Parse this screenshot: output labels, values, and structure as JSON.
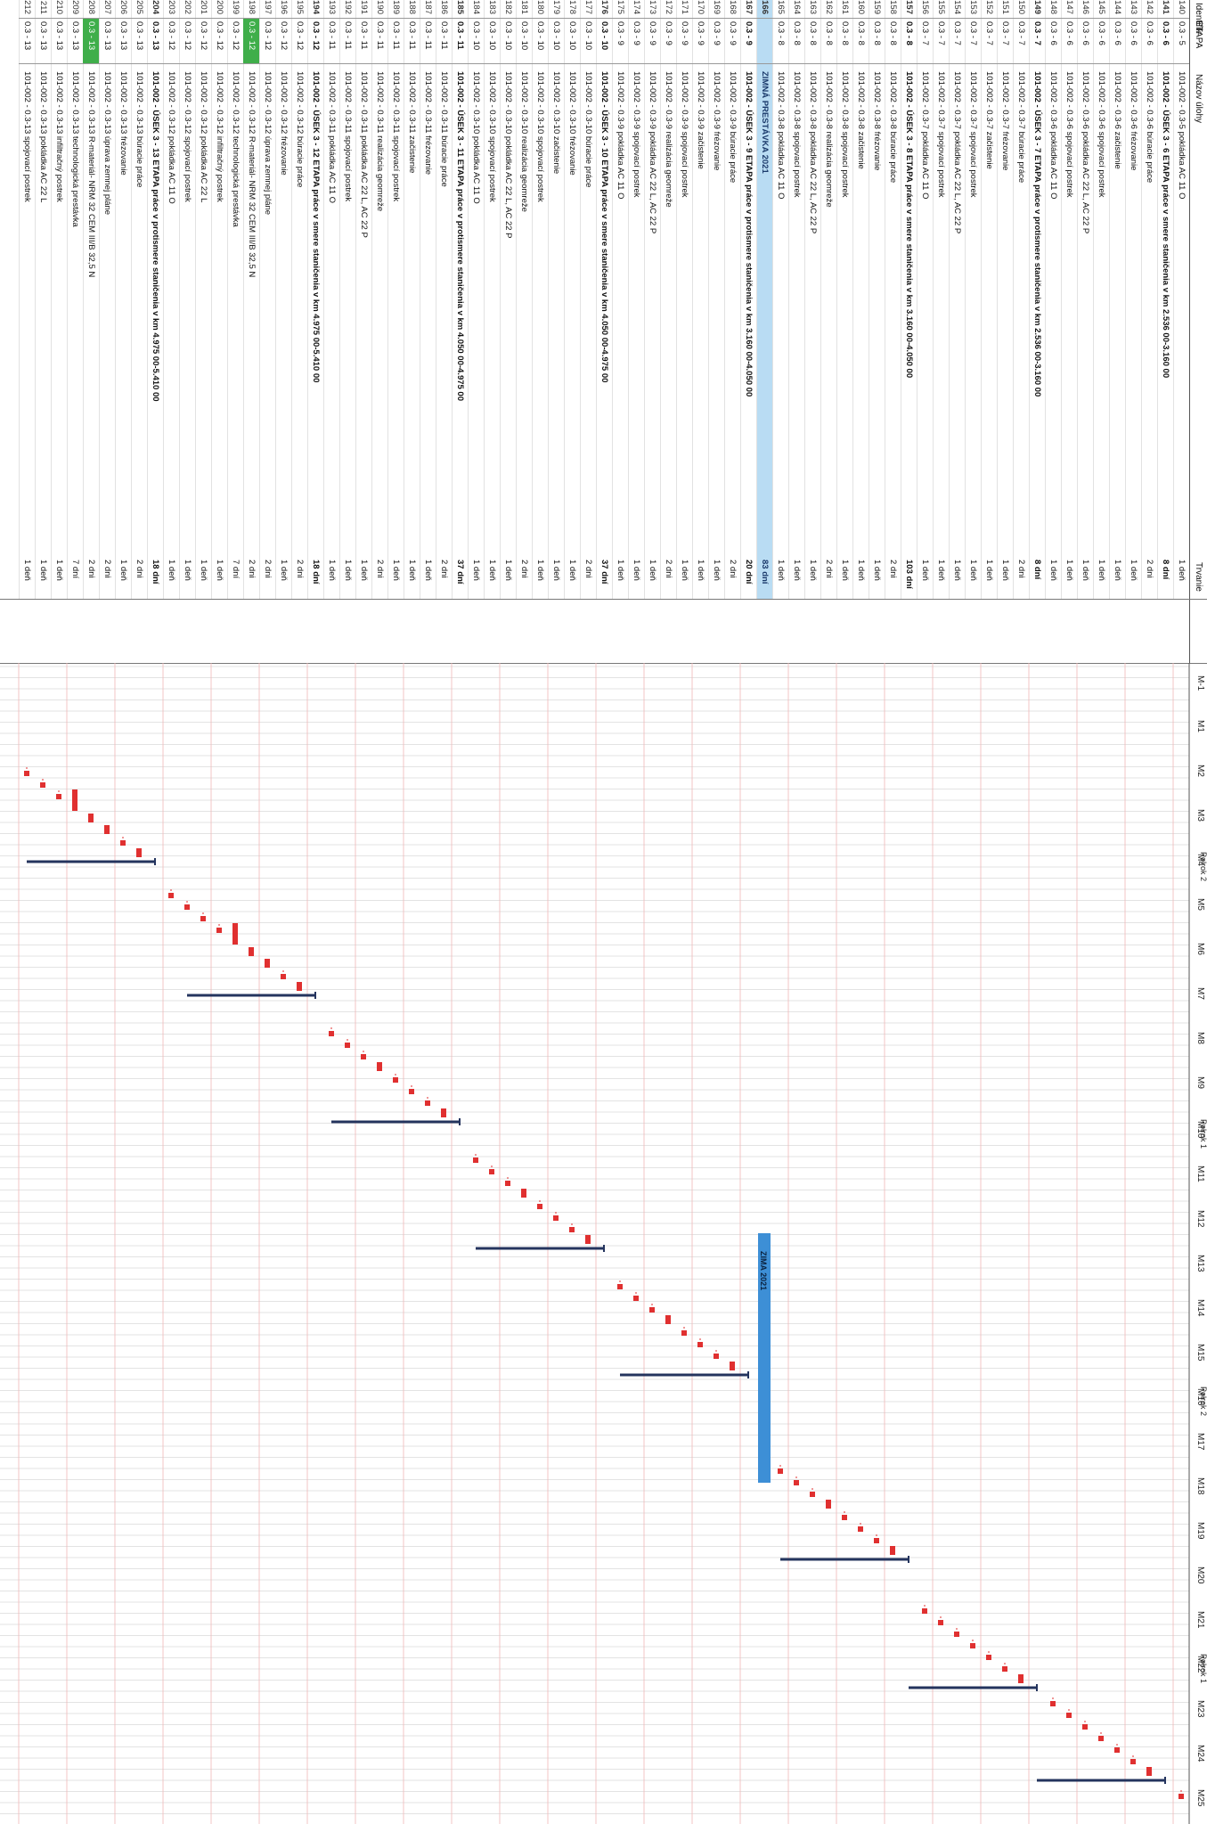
{
  "header": {
    "col_id": "Identifik",
    "col_etapa": "ETAPA",
    "col_name": "Názov úlohy",
    "col_duration": "Trvanie"
  },
  "timeline": {
    "months": [
      "M-1",
      "M1",
      "M2",
      "M3",
      "M4",
      "M5",
      "M6",
      "M7",
      "M8",
      "M9",
      "M10",
      "M11",
      "M12",
      "M13",
      "M14",
      "M15",
      "M16",
      "M17",
      "M18",
      "M19",
      "M20",
      "M21",
      "M22",
      "M23",
      "M24",
      "M25"
    ],
    "periods": [
      {
        "label": "Polrok 2",
        "month": "M4"
      },
      {
        "label": "Polrok 1",
        "month": "M10"
      },
      {
        "label": "Polrok 2",
        "month": "M16"
      },
      {
        "label": "Polrok 1",
        "month": "M22"
      }
    ],
    "winter_bar_label": "ZIMA 2021"
  },
  "rows": [
    {
      "id": "140",
      "etapa": "0.3 - 5",
      "name": "101-002 - 0.3-5 pokládka AC 11 O",
      "dur": "1 deň"
    },
    {
      "id": "141",
      "etapa": "0.3 - 6",
      "name": "101-002 - ÚSEK 3 - 6 ETAPA práce v smere staničenia v km 2.536 00-3.160 00",
      "dur": "8 dní",
      "bold": true
    },
    {
      "id": "142",
      "etapa": "0.3 - 6",
      "name": "101-002 - 0.3-6 búracie práce",
      "dur": "2 dni"
    },
    {
      "id": "143",
      "etapa": "0.3 - 6",
      "name": "101-002 - 0.3-6 frézovanie",
      "dur": "1 deň"
    },
    {
      "id": "144",
      "etapa": "0.3 - 6",
      "name": "101-002 - 0.3-6 začistenie",
      "dur": "1 deň"
    },
    {
      "id": "145",
      "etapa": "0.3 - 6",
      "name": "101-002 - 0.3-6 spojovací postrek",
      "dur": "1 deň"
    },
    {
      "id": "146",
      "etapa": "0.3 - 6",
      "name": "101-002 - 0.3-6 pokládka AC 22 L, AC 22 P",
      "dur": "1 deň"
    },
    {
      "id": "147",
      "etapa": "0.3 - 6",
      "name": "101-002 - 0.3-6 spojovací postrek",
      "dur": "1 deň"
    },
    {
      "id": "148",
      "etapa": "0.3 - 6",
      "name": "101-002 - 0.3-6 pokládka AC 11 O",
      "dur": "1 deň"
    },
    {
      "id": "149",
      "etapa": "0.3 - 7",
      "name": "101-002 - ÚSEK 3 - 7 ETAPA práce v protismere staničenia v km 2.536 00-3.160 00",
      "dur": "8 dní",
      "bold": true
    },
    {
      "id": "150",
      "etapa": "0.3 - 7",
      "name": "101-002 - 0.3-7 búracie práce",
      "dur": "2 dni"
    },
    {
      "id": "151",
      "etapa": "0.3 - 7",
      "name": "101-002 - 0.3-7 frézovanie",
      "dur": "1 deň"
    },
    {
      "id": "152",
      "etapa": "0.3 - 7",
      "name": "101-002 - 0.3-7 začistenie",
      "dur": "1 deň"
    },
    {
      "id": "153",
      "etapa": "0.3 - 7",
      "name": "101-002 - 0.3-7 spojovací postrek",
      "dur": "1 deň"
    },
    {
      "id": "154",
      "etapa": "0.3 - 7",
      "name": "101-002 - 0.3-7 pokládka AC 22 L, AC 22 P",
      "dur": "1 deň"
    },
    {
      "id": "155",
      "etapa": "0.3 - 7",
      "name": "101-002 - 0.3-7 spojovací postrek",
      "dur": "1 deň"
    },
    {
      "id": "156",
      "etapa": "0.3 - 7",
      "name": "101-002 - 0.3-7 pokládka AC 11 O",
      "dur": "1 deň"
    },
    {
      "id": "157",
      "etapa": "0.3 - 8",
      "name": "101-002 - ÚSEK 3 - 8 ETAPA práce v smere staničenia v km 3.160 00-4.050 00",
      "dur": "103 dní",
      "bold": true
    },
    {
      "id": "158",
      "etapa": "0.3 - 8",
      "name": "101-002 - 0.3-8 búracie práce",
      "dur": "2 dni"
    },
    {
      "id": "159",
      "etapa": "0.3 - 8",
      "name": "101-002 - 0.3-8 frézovanie",
      "dur": "1 deň"
    },
    {
      "id": "160",
      "etapa": "0.3 - 8",
      "name": "101-002 - 0.3-8 začistenie",
      "dur": "1 deň"
    },
    {
      "id": "161",
      "etapa": "0.3 - 8",
      "name": "101-002 - 0.3-8 spojovací postrek",
      "dur": "1 deň"
    },
    {
      "id": "162",
      "etapa": "0.3 - 8",
      "name": "101-002 - 0.3-8 realizácia geomreže",
      "dur": "2 dni"
    },
    {
      "id": "163",
      "etapa": "0.3 - 8",
      "name": "101-002 - 0.3-8 pokládka AC 22 L, AC 22 P",
      "dur": "1 deň"
    },
    {
      "id": "164",
      "etapa": "0.3 - 8",
      "name": "101-002 - 0.3-8 spojovací postrek",
      "dur": "1 deň"
    },
    {
      "id": "165",
      "etapa": "0.3 - 8",
      "name": "101-002 - 0.3-8 pokládka AC 11 O",
      "dur": "1 deň"
    },
    {
      "id": "166",
      "etapa": "",
      "name": "ZIMNÁ PRESTÁVKA 2021",
      "dur": "83 dní",
      "bold": true,
      "blue": true
    },
    {
      "id": "167",
      "etapa": "0.3 - 9",
      "name": "101-002 - ÚSEK 3 - 9 ETAPA práce v protismere staničenia v km 3.160 00-4.050 00",
      "dur": "20 dní",
      "bold": true
    },
    {
      "id": "168",
      "etapa": "0.3 - 9",
      "name": "101-002 - 0.3-9 búracie práce",
      "dur": "2 dni"
    },
    {
      "id": "169",
      "etapa": "0.3 - 9",
      "name": "101-002 - 0.3-9 frézovanie",
      "dur": "1 deň"
    },
    {
      "id": "170",
      "etapa": "0.3 - 9",
      "name": "101-002 - 0.3-9 začistenie",
      "dur": "1 deň"
    },
    {
      "id": "171",
      "etapa": "0.3 - 9",
      "name": "101-002 - 0.3-9 spojovací postrek",
      "dur": "1 deň"
    },
    {
      "id": "172",
      "etapa": "0.3 - 9",
      "name": "101-002 - 0.3-9 realizácia geomreže",
      "dur": "2 dni"
    },
    {
      "id": "173",
      "etapa": "0.3 - 9",
      "name": "101-002 - 0.3-9 pokládka AC 22 L, AC 22 P",
      "dur": "1 deň"
    },
    {
      "id": "174",
      "etapa": "0.3 - 9",
      "name": "101-002 - 0.3-9 spojovací postrek",
      "dur": "1 deň"
    },
    {
      "id": "175",
      "etapa": "0.3 - 9",
      "name": "101-002 - 0.3-9 pokládka AC 11 O",
      "dur": "1 deň"
    },
    {
      "id": "176",
      "etapa": "0.3 - 10",
      "name": "101-002 - ÚSEK 3 - 10 ETAPA práce v smere staničenia v km 4.050 00-4.975 00",
      "dur": "37 dní",
      "bold": true
    },
    {
      "id": "177",
      "etapa": "0.3 - 10",
      "name": "101-002 - 0.3-10 búracie práce",
      "dur": "2 dni"
    },
    {
      "id": "178",
      "etapa": "0.3 - 10",
      "name": "101-002 - 0.3-10 frézovanie",
      "dur": "1 deň"
    },
    {
      "id": "179",
      "etapa": "0.3 - 10",
      "name": "101-002 - 0.3-10 začistenie",
      "dur": "1 deň"
    },
    {
      "id": "180",
      "etapa": "0.3 - 10",
      "name": "101-002 - 0.3-10 spojovací postrek",
      "dur": "1 deň"
    },
    {
      "id": "181",
      "etapa": "0.3 - 10",
      "name": "101-002 - 0.3-10 realizácia geomreže",
      "dur": "2 dni"
    },
    {
      "id": "182",
      "etapa": "0.3 - 10",
      "name": "101-002 - 0.3-10 pokládka AC 22 L, AC 22 P",
      "dur": "1 deň"
    },
    {
      "id": "183",
      "etapa": "0.3 - 10",
      "name": "101-002 - 0.3-10 spojovací postrek",
      "dur": "1 deň"
    },
    {
      "id": "184",
      "etapa": "0.3 - 10",
      "name": "101-002 - 0.3-10 pokládka AC 11 O",
      "dur": "1 deň"
    },
    {
      "id": "185",
      "etapa": "0.3 - 11",
      "name": "101-002 - ÚSEK 3 - 11 ETAPA práce v protismere staničenia v km 4.050 00-4.975 00",
      "dur": "37 dní",
      "bold": true
    },
    {
      "id": "186",
      "etapa": "0.3 - 11",
      "name": "101-002 - 0.3-11 búracie práce",
      "dur": "2 dni"
    },
    {
      "id": "187",
      "etapa": "0.3 - 11",
      "name": "101-002 - 0.3-11 frézovanie",
      "dur": "1 deň"
    },
    {
      "id": "188",
      "etapa": "0.3 - 11",
      "name": "101-002 - 0.3-11 začistenie",
      "dur": "1 deň"
    },
    {
      "id": "189",
      "etapa": "0.3 - 11",
      "name": "101-002 - 0.3-11 spojovací postrek",
      "dur": "1 deň"
    },
    {
      "id": "190",
      "etapa": "0.3 - 11",
      "name": "101-002 - 0.3-11 realizácia geomreže",
      "dur": "2 dni"
    },
    {
      "id": "191",
      "etapa": "0.3 - 11",
      "name": "101-002 - 0.3-11 pokládka AC 22 L, AC 22 P",
      "dur": "1 deň"
    },
    {
      "id": "192",
      "etapa": "0.3 - 11",
      "name": "101-002 - 0.3-11 spojovací postrek",
      "dur": "1 deň"
    },
    {
      "id": "193",
      "etapa": "0.3 - 11",
      "name": "101-002 - 0.3-11 pokládka AC 11 O",
      "dur": "1 deň"
    },
    {
      "id": "194",
      "etapa": "0.3 - 12",
      "name": "101-002 - ÚSEK 3 - 12 ETAPA práce v smere staničenia v km 4.975 00-5.410 00",
      "dur": "18 dní",
      "bold": true
    },
    {
      "id": "195",
      "etapa": "0.3 - 12",
      "name": "101-002 - 0.3-12 búracie práce",
      "dur": "2 dni"
    },
    {
      "id": "196",
      "etapa": "0.3 - 12",
      "name": "101-002 - 0.3-12 frézovanie",
      "dur": "1 deň"
    },
    {
      "id": "197",
      "etapa": "0.3 - 12",
      "name": "101-002 - 0.3-12 úprava zemnej pláne",
      "dur": "2 dni"
    },
    {
      "id": "198",
      "etapa": "0.3 - 12",
      "name": "101-002 - 0.3-12 R-materiál- NRM 32 CEM III/B 32,5 N",
      "dur": "2 dni",
      "green": true
    },
    {
      "id": "199",
      "etapa": "0.3 - 12",
      "name": "101-002 - 0.3-12 technologická prestávka",
      "dur": "7 dní"
    },
    {
      "id": "200",
      "etapa": "0.3 - 12",
      "name": "101-002 - 0.3-12 infiltračný postrek",
      "dur": "1 deň"
    },
    {
      "id": "201",
      "etapa": "0.3 - 12",
      "name": "101-002 - 0.3-12 pokládka AC 22 L",
      "dur": "1 deň"
    },
    {
      "id": "202",
      "etapa": "0.3 - 12",
      "name": "101-002 - 0.3-12 spojovací postrek",
      "dur": "1 deň"
    },
    {
      "id": "203",
      "etapa": "0.3 - 12",
      "name": "101-002 - 0.3-12 pokládka AC 11 O",
      "dur": "1 deň"
    },
    {
      "id": "204",
      "etapa": "0.3 - 13",
      "name": "101-002 - ÚSEK 3 - 13 ETAPA práce v protismere staničenia v km 4.975 00-5.410 00",
      "dur": "18 dní",
      "bold": true
    },
    {
      "id": "205",
      "etapa": "0.3 - 13",
      "name": "101-002 - 0.3-13 búracie práce",
      "dur": "2 dni"
    },
    {
      "id": "206",
      "etapa": "0.3 - 13",
      "name": "101-002 - 0.3-13 frézovanie",
      "dur": "1 deň"
    },
    {
      "id": "207",
      "etapa": "0.3 - 13",
      "name": "101-002 - 0.3-13 úprava zemnej pláne",
      "dur": "2 dni"
    },
    {
      "id": "208",
      "etapa": "0.3 - 13",
      "name": "101-002 - 0.3-13 R-materiál- NRM 32 CEM III/B 32,5 N",
      "dur": "2 dni",
      "green": true
    },
    {
      "id": "209",
      "etapa": "0.3 - 13",
      "name": "101-002 - 0.3-13 technologická prestávka",
      "dur": "7 dní"
    },
    {
      "id": "210",
      "etapa": "0.3 - 13",
      "name": "101-002 - 0.3-13 infiltračný postrek",
      "dur": "1 deň"
    },
    {
      "id": "211",
      "etapa": "0.3 - 13",
      "name": "101-002 - 0.3-13 pokládka AC 22 L",
      "dur": "1 deň"
    },
    {
      "id": "212",
      "etapa": "0.3 - 13",
      "name": "101-002 - 0.3-13 spojovací postrek",
      "dur": "1 deň"
    }
  ],
  "colors": {
    "task_bar": "#e03030",
    "summary_bracket": "#24345e",
    "winter_bar": "#3d8fd6",
    "highlight_blue": "#b9dcf3",
    "highlight_green": "#3fae4a",
    "grid": "#c8c8c8",
    "row_line": "#f0b8b8"
  }
}
